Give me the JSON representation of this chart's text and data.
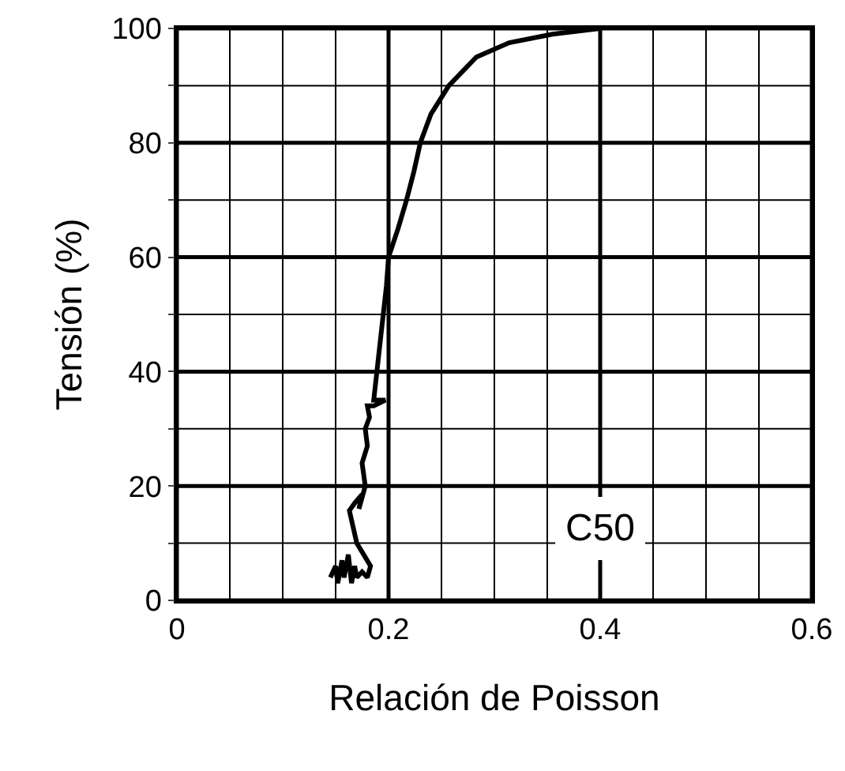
{
  "chart_data": {
    "type": "line",
    "xlabel": "Relación de Poisson",
    "ylabel": "Tensión (%)",
    "series": [
      {
        "color": "#000000",
        "x": [
          0.145,
          0.15,
          0.152,
          0.156,
          0.158,
          0.162,
          0.165,
          0.168,
          0.17,
          0.175,
          0.18,
          0.183,
          0.17,
          0.163,
          0.168,
          0.175,
          0.172,
          0.178,
          0.175,
          0.18,
          0.178,
          0.182,
          0.18,
          0.186,
          0.197,
          0.186,
          0.189,
          0.192,
          0.195,
          0.198,
          0.2,
          0.2,
          0.209,
          0.217,
          0.224,
          0.23,
          0.24,
          0.257,
          0.283,
          0.314,
          0.355,
          0.4
        ],
        "values": [
          4,
          6,
          3,
          7,
          4,
          8,
          3,
          6,
          4,
          5,
          4,
          6,
          10,
          15.7,
          17,
          18.5,
          16,
          20,
          24,
          27,
          30,
          32,
          34,
          34,
          35,
          35,
          40,
          45,
          50,
          55,
          60,
          60,
          65,
          70,
          75,
          80,
          85,
          90,
          95,
          97.5,
          99,
          100
        ]
      }
    ],
    "xlim": [
      0,
      0.6
    ],
    "ylim": [
      0,
      100
    ],
    "xticks": [
      0,
      {
        "value": 0.05,
        "label": null
      },
      {
        "value": 0.1,
        "label": null
      },
      {
        "value": 0.15,
        "label": null
      },
      0.2,
      {
        "value": 0.25,
        "label": null
      },
      {
        "value": 0.3,
        "label": null
      },
      {
        "value": 0.35,
        "label": null
      },
      0.4,
      {
        "value": 0.45,
        "label": null
      },
      {
        "value": 0.5,
        "label": null
      },
      {
        "value": 0.55,
        "label": null
      },
      0.6
    ],
    "yticks": [
      0,
      {
        "value": 10,
        "label": null
      },
      20,
      {
        "value": 30,
        "label": null
      },
      40,
      {
        "value": 50,
        "label": null
      },
      60,
      {
        "value": 70,
        "label": null
      },
      80,
      {
        "value": 90,
        "label": null
      },
      100
    ],
    "grid": true,
    "marker": "none",
    "line_style": "solid",
    "annotations": [
      "C50"
    ]
  }
}
